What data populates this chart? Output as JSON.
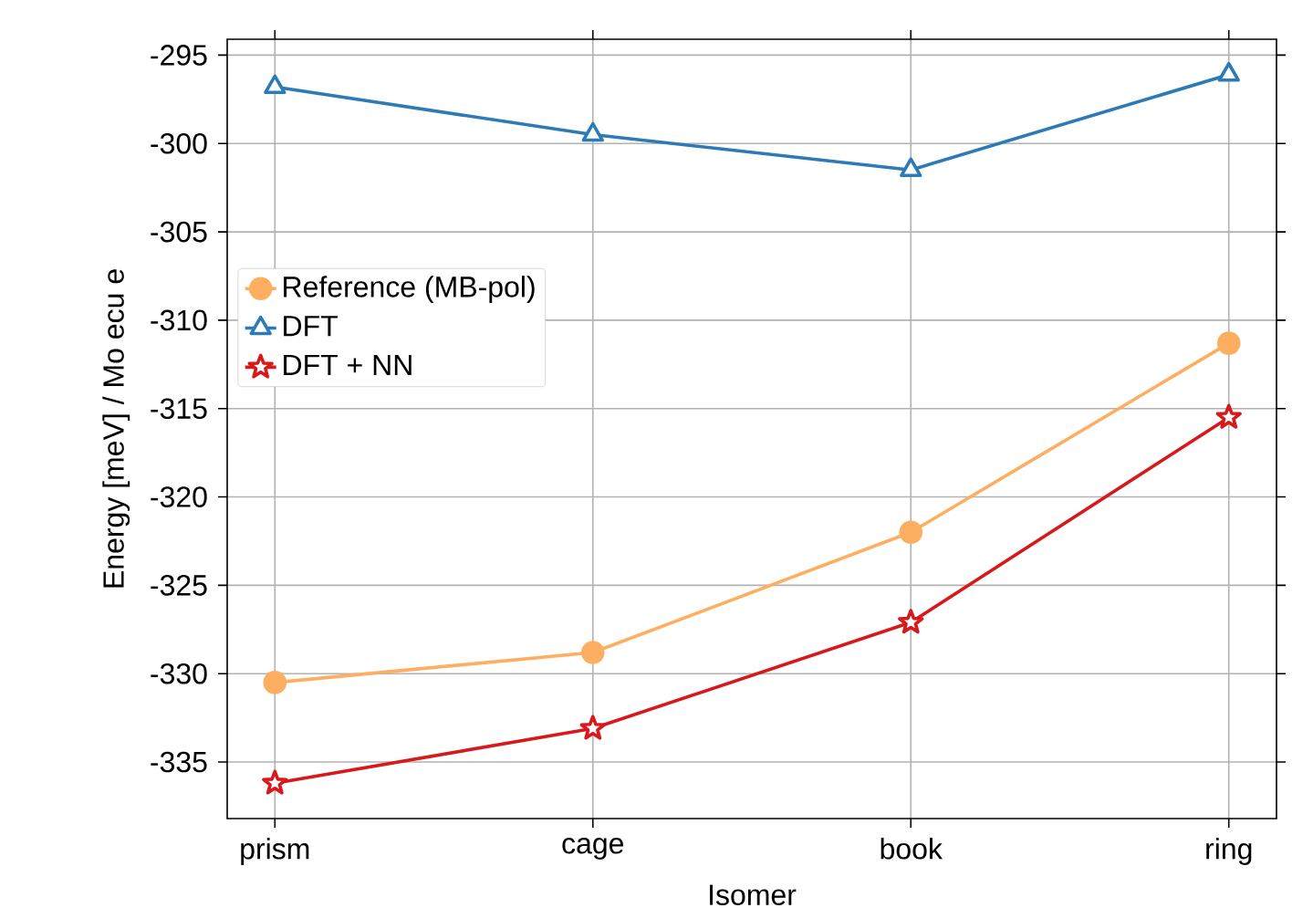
{
  "chart_data": {
    "type": "line",
    "xlabel": "Isomer",
    "ylabel": "Energy [meV] / Mo ecu e",
    "categories": [
      "prism",
      "cage",
      "book",
      "ring"
    ],
    "series": [
      {
        "name": "Reference (MB-pol)",
        "color": "#fdae61",
        "marker": "circle",
        "values": [
          -330.5,
          -328.8,
          -322.0,
          -311.3
        ]
      },
      {
        "name": "DFT",
        "color": "#2c7bb6",
        "marker": "triangle",
        "values": [
          -296.8,
          -299.5,
          -301.5,
          -296.1
        ]
      },
      {
        "name": "DFT +  NN",
        "color": "#d7191c",
        "marker": "star",
        "values": [
          -336.2,
          -333.1,
          -327.1,
          -315.5
        ]
      }
    ],
    "ylim": [
      -338.2,
      -294.1
    ],
    "yticks": [
      -335,
      -330,
      -325,
      -320,
      -315,
      -310,
      -305,
      -300,
      -295
    ],
    "grid": true,
    "legend": "left",
    "line_style": "solid"
  }
}
